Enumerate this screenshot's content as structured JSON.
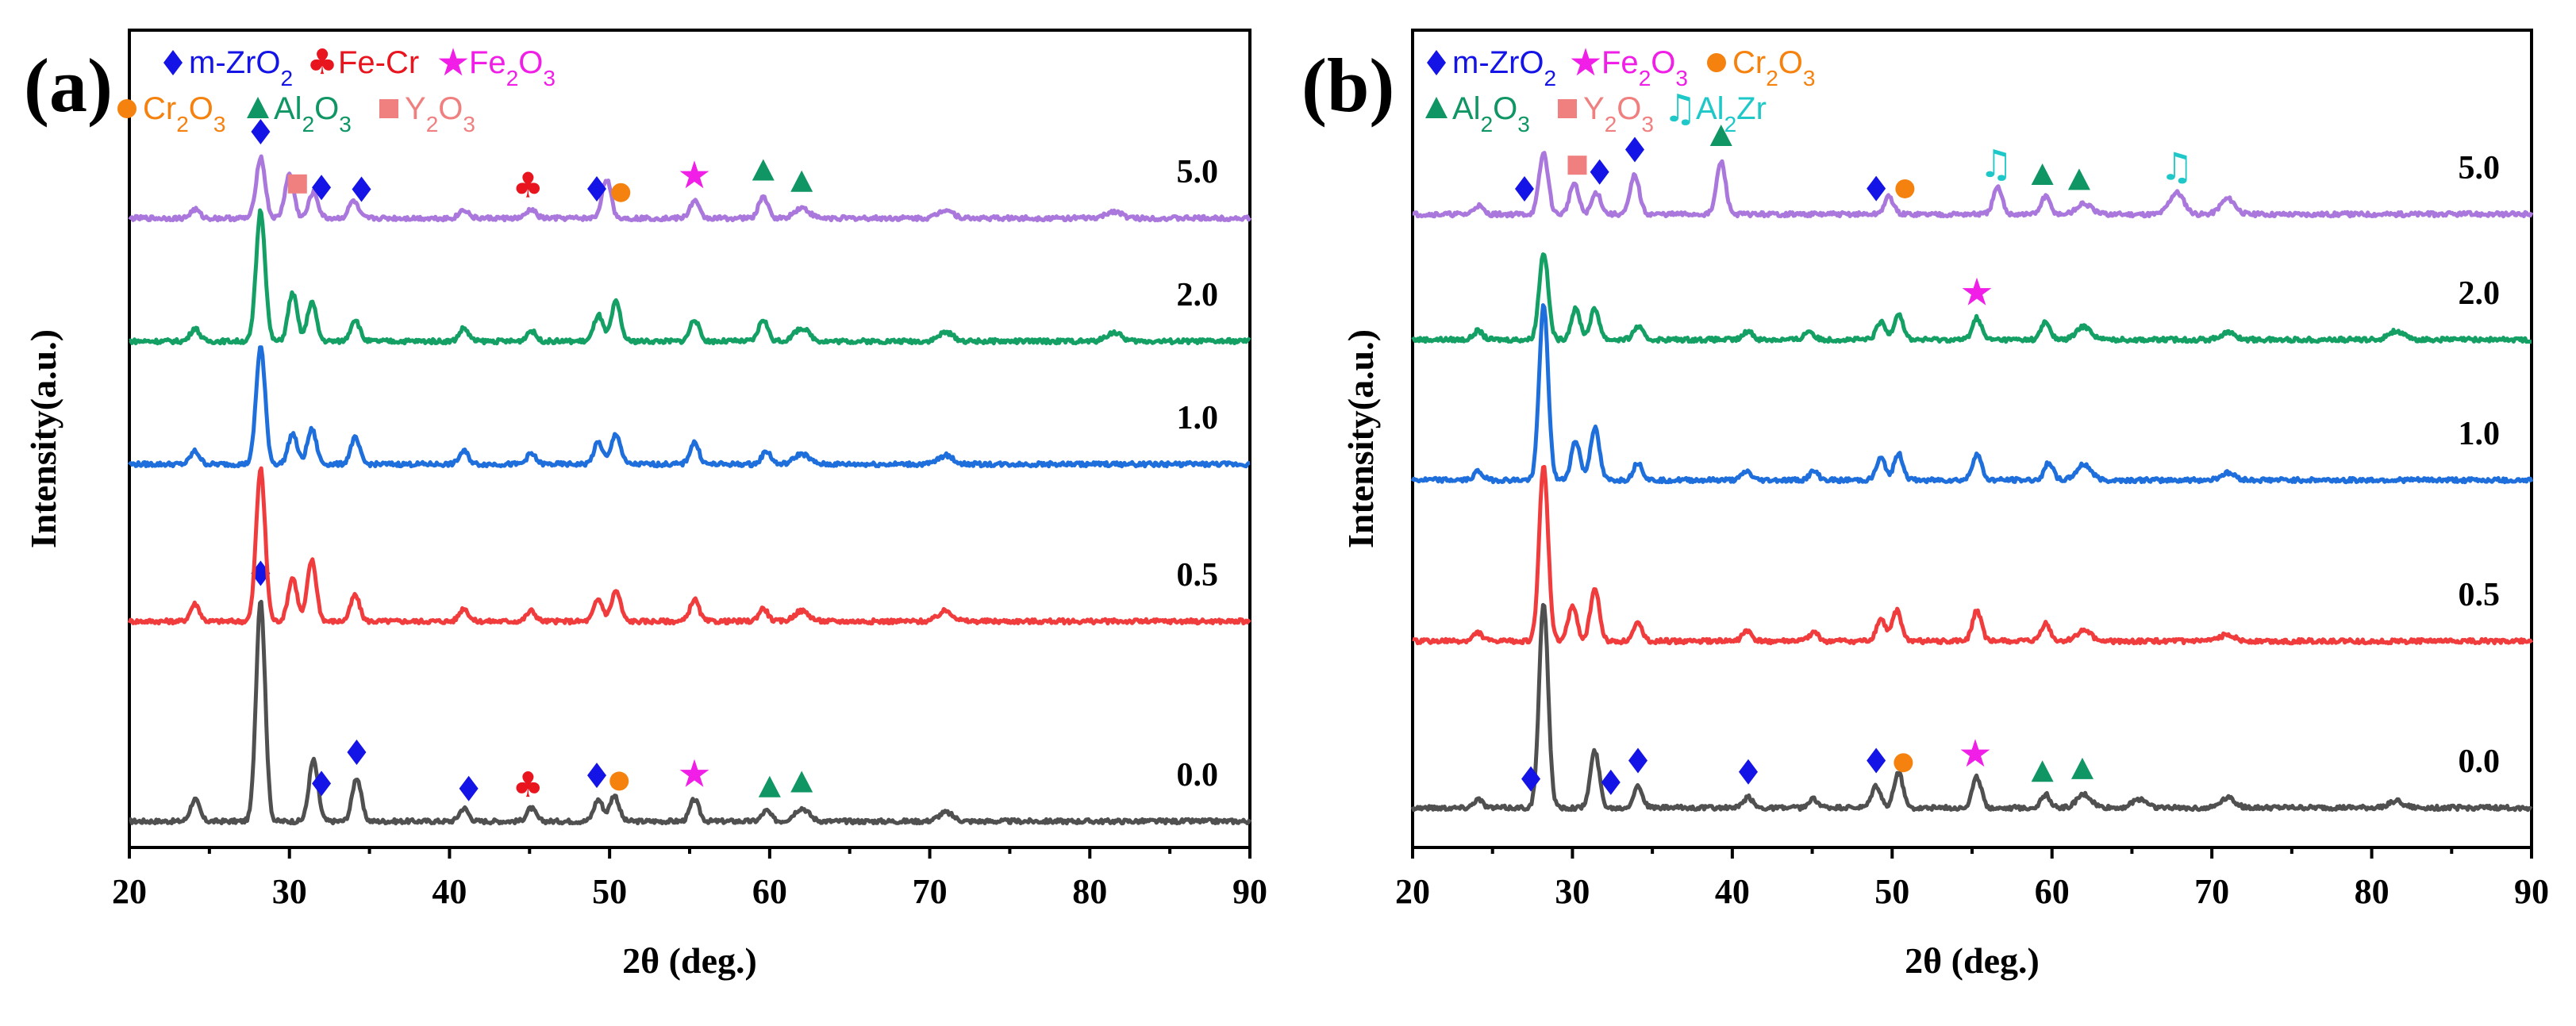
{
  "colors": {
    "m-ZrO2": "#1414e6",
    "Fe-Cr": "#e8141e",
    "Fe2O3": "#f01ee6",
    "Cr2O3": "#f5820f",
    "Al2O3": "#0f9664",
    "Y2O3": "#f08080",
    "Al2Zr": "#1ec8c8"
  },
  "legend_text": {
    "m-ZrO2": "m-ZrO2",
    "Fe-Cr": "Fe-Cr",
    "Fe2O3": "Fe2O3",
    "Cr2O3": "Cr2O3",
    "Al2O3": "Al2O3",
    "Y2O3": "Y2O3",
    "Al2Zr": "Al2Zr"
  },
  "chart_data": [
    {
      "panel": "(a)",
      "type": "line",
      "xlabel": "2θ (deg.)",
      "ylabel": "Intensity(a.u.)",
      "xlim": [
        20,
        90
      ],
      "xticks": [
        20,
        30,
        40,
        50,
        60,
        70,
        80,
        90
      ],
      "legend": [
        "m-ZrO2",
        "Fe-Cr",
        "Fe2O3",
        "Cr2O3",
        "Al2O3",
        "Y2O3"
      ],
      "series": [
        {
          "name": "0.0",
          "color": "#505050",
          "peaks": [
            [
              24.1,
              0.025
            ],
            [
              28.2,
              0.255
            ],
            [
              31.5,
              0.07
            ],
            [
              34.2,
              0.05
            ],
            [
              40.9,
              0.015
            ],
            [
              45.1,
              0.015
            ],
            [
              49.3,
              0.025
            ],
            [
              50.3,
              0.03
            ],
            [
              55.3,
              0.025
            ],
            [
              59.8,
              0.012
            ],
            [
              62.0,
              0.015
            ],
            [
              71.0,
              0.01
            ]
          ],
          "markers": [
            {
              "x": 28.2,
              "phase": "m-ZrO2"
            },
            {
              "x": 32.0,
              "phase": "m-ZrO2"
            },
            {
              "x": 34.2,
              "phase": "m-ZrO2"
            },
            {
              "x": 41.2,
              "phase": "m-ZrO2"
            },
            {
              "x": 44.9,
              "phase": "Fe-Cr"
            },
            {
              "x": 49.2,
              "phase": "m-ZrO2"
            },
            {
              "x": 50.6,
              "phase": "Cr2O3"
            },
            {
              "x": 55.3,
              "phase": "Fe2O3"
            },
            {
              "x": 60.0,
              "phase": "Al2O3"
            },
            {
              "x": 62.0,
              "phase": "Al2O3"
            }
          ]
        },
        {
          "name": "0.5",
          "color": "#f03c3c",
          "peaks": [
            [
              24.1,
              0.02
            ],
            [
              28.2,
              0.175
            ],
            [
              30.2,
              0.05
            ],
            [
              31.4,
              0.07
            ],
            [
              34.1,
              0.03
            ],
            [
              40.9,
              0.015
            ],
            [
              45.1,
              0.012
            ],
            [
              49.3,
              0.025
            ],
            [
              50.4,
              0.035
            ],
            [
              55.3,
              0.025
            ],
            [
              59.6,
              0.015
            ],
            [
              62.0,
              0.012
            ],
            [
              71.0,
              0.012
            ]
          ],
          "markers": []
        },
        {
          "name": "1.0",
          "color": "#1e6edc",
          "peaks": [
            [
              24.1,
              0.015
            ],
            [
              28.2,
              0.135
            ],
            [
              30.2,
              0.035
            ],
            [
              31.4,
              0.04
            ],
            [
              34.1,
              0.03
            ],
            [
              40.9,
              0.015
            ],
            [
              45.1,
              0.012
            ],
            [
              49.3,
              0.025
            ],
            [
              50.4,
              0.035
            ],
            [
              55.3,
              0.025
            ],
            [
              59.8,
              0.015
            ],
            [
              62.0,
              0.012
            ],
            [
              71.0,
              0.01
            ]
          ],
          "markers": []
        },
        {
          "name": "2.0",
          "color": "#14a064",
          "peaks": [
            [
              24.1,
              0.015
            ],
            [
              28.2,
              0.15
            ],
            [
              30.2,
              0.055
            ],
            [
              31.4,
              0.045
            ],
            [
              34.1,
              0.025
            ],
            [
              40.9,
              0.015
            ],
            [
              45.1,
              0.012
            ],
            [
              49.3,
              0.03
            ],
            [
              50.4,
              0.045
            ],
            [
              55.3,
              0.025
            ],
            [
              59.6,
              0.025
            ],
            [
              62.0,
              0.015
            ],
            [
              71.0,
              0.01
            ],
            [
              81.5,
              0.01
            ]
          ],
          "markers": []
        },
        {
          "name": "5.0",
          "color": "#aa78dc",
          "peaks": [
            [
              24.1,
              0.01
            ],
            [
              28.2,
              0.07
            ],
            [
              30.0,
              0.05
            ],
            [
              31.5,
              0.03
            ],
            [
              34.0,
              0.02
            ],
            [
              40.9,
              0.01
            ],
            [
              45.1,
              0.01
            ],
            [
              49.8,
              0.045
            ],
            [
              55.3,
              0.02
            ],
            [
              59.6,
              0.025
            ],
            [
              62.0,
              0.012
            ],
            [
              71.0,
              0.01
            ],
            [
              81.5,
              0.008
            ]
          ],
          "markers": [
            {
              "x": 28.2,
              "phase": "m-ZrO2"
            },
            {
              "x": 30.5,
              "phase": "Y2O3"
            },
            {
              "x": 32.0,
              "phase": "m-ZrO2"
            },
            {
              "x": 34.5,
              "phase": "m-ZrO2"
            },
            {
              "x": 44.9,
              "phase": "Fe-Cr"
            },
            {
              "x": 49.2,
              "phase": "m-ZrO2"
            },
            {
              "x": 50.7,
              "phase": "Cr2O3"
            },
            {
              "x": 55.3,
              "phase": "Fe2O3"
            },
            {
              "x": 59.6,
              "phase": "Al2O3"
            },
            {
              "x": 62.0,
              "phase": "Al2O3"
            }
          ]
        }
      ]
    },
    {
      "panel": "(b)",
      "type": "line",
      "xlabel": "2θ (deg.)",
      "ylabel": "Intensity(a.u.)",
      "xlim": [
        20,
        90
      ],
      "xticks": [
        20,
        30,
        40,
        50,
        60,
        70,
        80,
        90
      ],
      "legend": [
        "m-ZrO2",
        "Fe2O3",
        "Cr2O3",
        "Al2O3",
        "Y2O3",
        "Al2Zr"
      ],
      "series": [
        {
          "name": "0.0",
          "color": "#505050",
          "peaks": [
            [
              24.1,
              0.01
            ],
            [
              28.2,
              0.235
            ],
            [
              31.4,
              0.065
            ],
            [
              34.1,
              0.025
            ],
            [
              41.0,
              0.012
            ],
            [
              45.1,
              0.01
            ],
            [
              49.0,
              0.025
            ],
            [
              50.4,
              0.04
            ],
            [
              55.3,
              0.035
            ],
            [
              59.6,
              0.015
            ],
            [
              62.0,
              0.015
            ],
            [
              65.5,
              0.01
            ],
            [
              71.0,
              0.012
            ],
            [
              81.5,
              0.008
            ]
          ],
          "markers": [
            {
              "x": 27.4,
              "phase": "m-ZrO2"
            },
            {
              "x": 32.4,
              "phase": "m-ZrO2"
            },
            {
              "x": 34.1,
              "phase": "m-ZrO2"
            },
            {
              "x": 41.0,
              "phase": "m-ZrO2"
            },
            {
              "x": 49.0,
              "phase": "m-ZrO2"
            },
            {
              "x": 50.7,
              "phase": "Cr2O3"
            },
            {
              "x": 55.2,
              "phase": "Fe2O3"
            },
            {
              "x": 59.4,
              "phase": "Al2O3"
            },
            {
              "x": 61.9,
              "phase": "Al2O3"
            }
          ]
        },
        {
          "name": "0.5",
          "color": "#f03c3c",
          "peaks": [
            [
              24.1,
              0.01
            ],
            [
              28.2,
              0.2
            ],
            [
              30.0,
              0.04
            ],
            [
              31.4,
              0.06
            ],
            [
              34.1,
              0.02
            ],
            [
              40.9,
              0.012
            ],
            [
              45.1,
              0.01
            ],
            [
              49.3,
              0.025
            ],
            [
              50.3,
              0.035
            ],
            [
              55.3,
              0.035
            ],
            [
              59.6,
              0.02
            ],
            [
              62.0,
              0.012
            ],
            [
              71.0,
              0.008
            ]
          ],
          "markers": []
        },
        {
          "name": "1.0",
          "color": "#1e6edc",
          "peaks": [
            [
              24.1,
              0.01
            ],
            [
              28.2,
              0.2
            ],
            [
              30.2,
              0.045
            ],
            [
              31.4,
              0.06
            ],
            [
              34.1,
              0.02
            ],
            [
              40.9,
              0.01
            ],
            [
              45.1,
              0.01
            ],
            [
              49.3,
              0.025
            ],
            [
              50.4,
              0.03
            ],
            [
              55.3,
              0.03
            ],
            [
              59.8,
              0.02
            ],
            [
              62.0,
              0.018
            ],
            [
              71.0,
              0.008
            ]
          ],
          "markers": []
        },
        {
          "name": "2.0",
          "color": "#14a064",
          "peaks": [
            [
              24.1,
              0.01
            ],
            [
              28.2,
              0.1
            ],
            [
              30.2,
              0.035
            ],
            [
              31.4,
              0.035
            ],
            [
              34.1,
              0.015
            ],
            [
              41.0,
              0.01
            ],
            [
              44.8,
              0.01
            ],
            [
              49.3,
              0.02
            ],
            [
              50.4,
              0.03
            ],
            [
              55.3,
              0.025
            ],
            [
              59.6,
              0.02
            ],
            [
              62.0,
              0.015
            ],
            [
              71.0,
              0.008
            ],
            [
              81.5,
              0.01
            ]
          ],
          "markers": [
            {
              "x": 55.3,
              "phase": "Fe2O3"
            }
          ]
        },
        {
          "name": "5.0",
          "color": "#aa78dc",
          "peaks": [
            [
              24.1,
              0.01
            ],
            [
              28.2,
              0.07
            ],
            [
              30.1,
              0.035
            ],
            [
              31.5,
              0.025
            ],
            [
              33.9,
              0.045
            ],
            [
              39.3,
              0.06
            ],
            [
              49.8,
              0.02
            ],
            [
              56.6,
              0.03
            ],
            [
              59.6,
              0.02
            ],
            [
              62.0,
              0.012
            ],
            [
              67.8,
              0.025
            ],
            [
              71.0,
              0.018
            ]
          ],
          "markers": [
            {
              "x": 27.0,
              "phase": "m-ZrO2"
            },
            {
              "x": 30.3,
              "phase": "Y2O3"
            },
            {
              "x": 31.7,
              "phase": "m-ZrO2"
            },
            {
              "x": 33.9,
              "phase": "m-ZrO2"
            },
            {
              "x": 39.3,
              "phase": "Al2O3"
            },
            {
              "x": 49.0,
              "phase": "m-ZrO2"
            },
            {
              "x": 50.8,
              "phase": "Cr2O3"
            },
            {
              "x": 56.5,
              "phase": "Al2Zr"
            },
            {
              "x": 59.4,
              "phase": "Al2O3"
            },
            {
              "x": 61.7,
              "phase": "Al2O3"
            },
            {
              "x": 67.8,
              "phase": "Al2Zr"
            }
          ]
        }
      ]
    }
  ]
}
